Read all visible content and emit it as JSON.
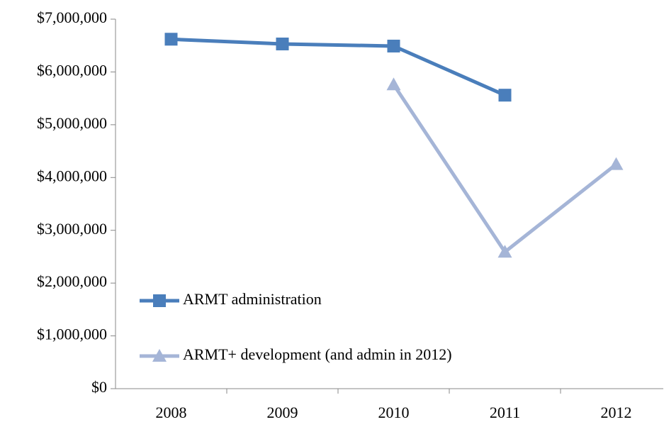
{
  "chart_data": {
    "type": "line",
    "categories": [
      "2008",
      "2009",
      "2010",
      "2011",
      "2012"
    ],
    "series": [
      {
        "name": "ARMT administration",
        "color": "#4a7ebb",
        "marker": "square",
        "values": [
          6620000,
          6530000,
          6490000,
          5560000,
          null
        ]
      },
      {
        "name": "ARMT+ development (and admin in 2012)",
        "color": "#a5b5d7",
        "marker": "triangle",
        "values": [
          null,
          null,
          5760000,
          2590000,
          4250000
        ]
      }
    ],
    "ylim": [
      0,
      7000000
    ],
    "yticks": [
      {
        "value": 0,
        "label": "$0"
      },
      {
        "value": 1000000,
        "label": "$1,000,000"
      },
      {
        "value": 2000000,
        "label": "$2,000,000"
      },
      {
        "value": 3000000,
        "label": "$3,000,000"
      },
      {
        "value": 4000000,
        "label": "$4,000,000"
      },
      {
        "value": 5000000,
        "label": "$5,000,000"
      },
      {
        "value": 6000000,
        "label": "$6,000,000"
      },
      {
        "value": 7000000,
        "label": "$7,000,000"
      }
    ],
    "grid": false,
    "legend": "lower left"
  }
}
